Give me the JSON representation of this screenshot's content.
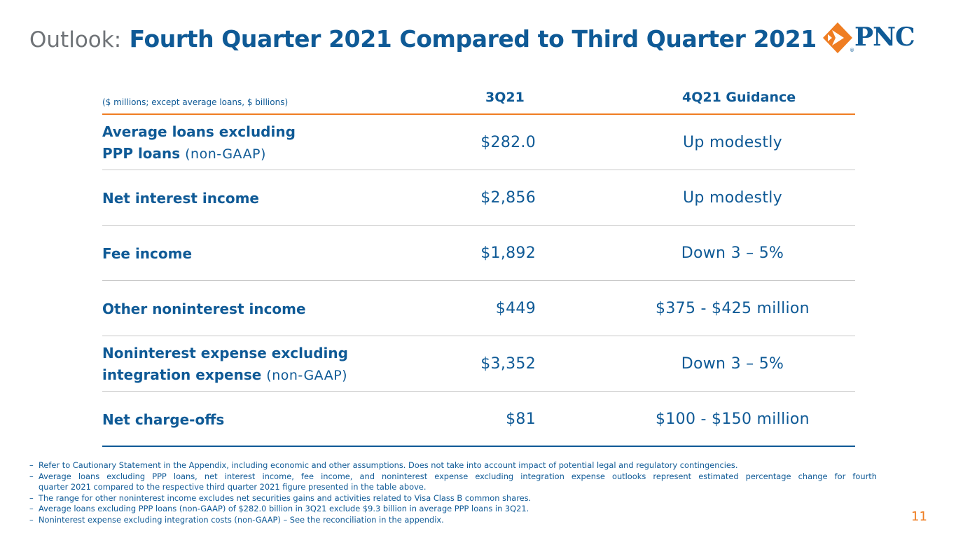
{
  "title": {
    "prefix": "Outlook:",
    "main": "Fourth Quarter 2021 Compared to Third Quarter 2021"
  },
  "logo": {
    "name": "PNC",
    "mark": "®",
    "brand_orange": "#ef7d22",
    "brand_blue": "#0f5a96"
  },
  "table": {
    "units_note": "($ millions; except average loans, $ billions)",
    "col_3q": "3Q21",
    "col_guidance": "4Q21 Guidance",
    "rows": [
      {
        "label": "Average loans excluding",
        "label2": "PPP loans",
        "suffix": "(non-GAAP)",
        "value": "$282.0",
        "guidance": "Up modestly"
      },
      {
        "label": "Net interest income",
        "value": "$2,856",
        "guidance": "Up modestly"
      },
      {
        "label": "Fee income",
        "value": "$1,892",
        "guidance": "Down 3 – 5%"
      },
      {
        "label": "Other noninterest income",
        "value": "$449",
        "guidance": "$375 - $425 million"
      },
      {
        "label": "Noninterest expense excluding",
        "label2": "integration expense",
        "suffix": "(non-GAAP)",
        "value": "$3,352",
        "guidance": "Down 3 – 5%"
      },
      {
        "label": "Net charge-offs",
        "value": "$81",
        "guidance": "$100 - $150 million"
      }
    ]
  },
  "footnotes": [
    "Refer to Cautionary Statement in the Appendix, including economic and other assumptions. Does not take into account impact of potential legal and regulatory contingencies.",
    {
      "lead": "Average loans excluding PPP loans, net interest income, fee income, and noninterest expense excluding integration expense outlooks represent estimated percentage change for fourth",
      "rest": "quarter 2021 compared to the respective third quarter 2021 figure presented in the table above."
    },
    "The range for other noninterest income excludes net securities gains and activities related to Visa Class B common shares.",
    "Average loans excluding PPP loans (non-GAAP) of $282.0 billion in 3Q21 exclude $9.3 billion in average PPP loans in 3Q21.",
    "Noninterest expense excluding integration costs (non-GAAP) – See the reconciliation in the appendix."
  ],
  "page_number": "11"
}
